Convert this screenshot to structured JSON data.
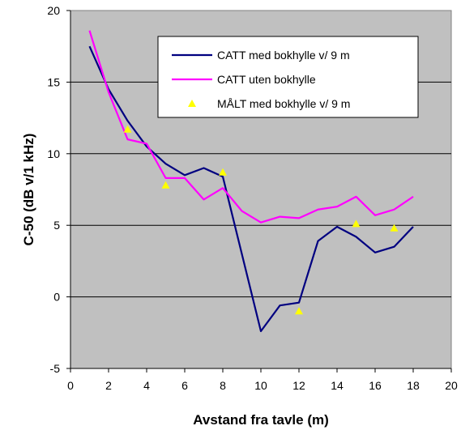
{
  "chart_data": {
    "type": "line",
    "xlabel": "Avstand fra tavle (m)",
    "ylabel": "C-50 (dB v/1 kHz)",
    "xlim": [
      0,
      20
    ],
    "ylim": [
      -5,
      20
    ],
    "xticks": [
      0,
      2,
      4,
      6,
      8,
      10,
      12,
      14,
      16,
      18,
      20
    ],
    "yticks": [
      -5,
      0,
      5,
      10,
      15,
      20
    ],
    "xtick_labels": [
      "0",
      "2",
      "4",
      "6",
      "8",
      "10",
      "12",
      "14",
      "16",
      "18",
      "20"
    ],
    "ytick_labels": [
      "-5",
      "0",
      "5",
      "10",
      "15",
      "20"
    ],
    "grid": "horizontal",
    "plot_background": "#c0c0c0",
    "legend_position": "top-right",
    "series": [
      {
        "name": "CATT med bokhylle v/ 9 m",
        "kind": "line",
        "color": "#000080",
        "x": [
          1,
          2,
          3,
          4,
          5,
          6,
          7,
          8,
          9,
          10,
          11,
          12,
          13,
          14,
          15,
          16,
          17,
          18
        ],
        "y": [
          17.5,
          14.5,
          12.3,
          10.5,
          9.3,
          8.5,
          9.0,
          8.4,
          3.0,
          -2.4,
          -0.6,
          -0.4,
          3.9,
          4.9,
          4.2,
          3.1,
          3.5,
          4.9
        ]
      },
      {
        "name": "CATT uten bokhylle",
        "kind": "line",
        "color": "#ff00ff",
        "x": [
          1,
          2,
          3,
          4,
          5,
          6,
          7,
          8,
          9,
          10,
          11,
          12,
          13,
          14,
          15,
          16,
          17,
          18
        ],
        "y": [
          18.6,
          14.3,
          11.0,
          10.7,
          8.3,
          8.3,
          6.8,
          7.6,
          6.0,
          5.2,
          5.6,
          5.5,
          6.1,
          6.3,
          7.0,
          5.7,
          6.1,
          7.0
        ]
      },
      {
        "name": "MÅLT med bokhylle v/ 9 m",
        "kind": "scatter",
        "marker": "triangle",
        "color": "#ffff00",
        "x": [
          3,
          5,
          8,
          12,
          15,
          17
        ],
        "y": [
          11.7,
          7.8,
          8.7,
          -1.0,
          5.1,
          4.8
        ]
      }
    ]
  }
}
